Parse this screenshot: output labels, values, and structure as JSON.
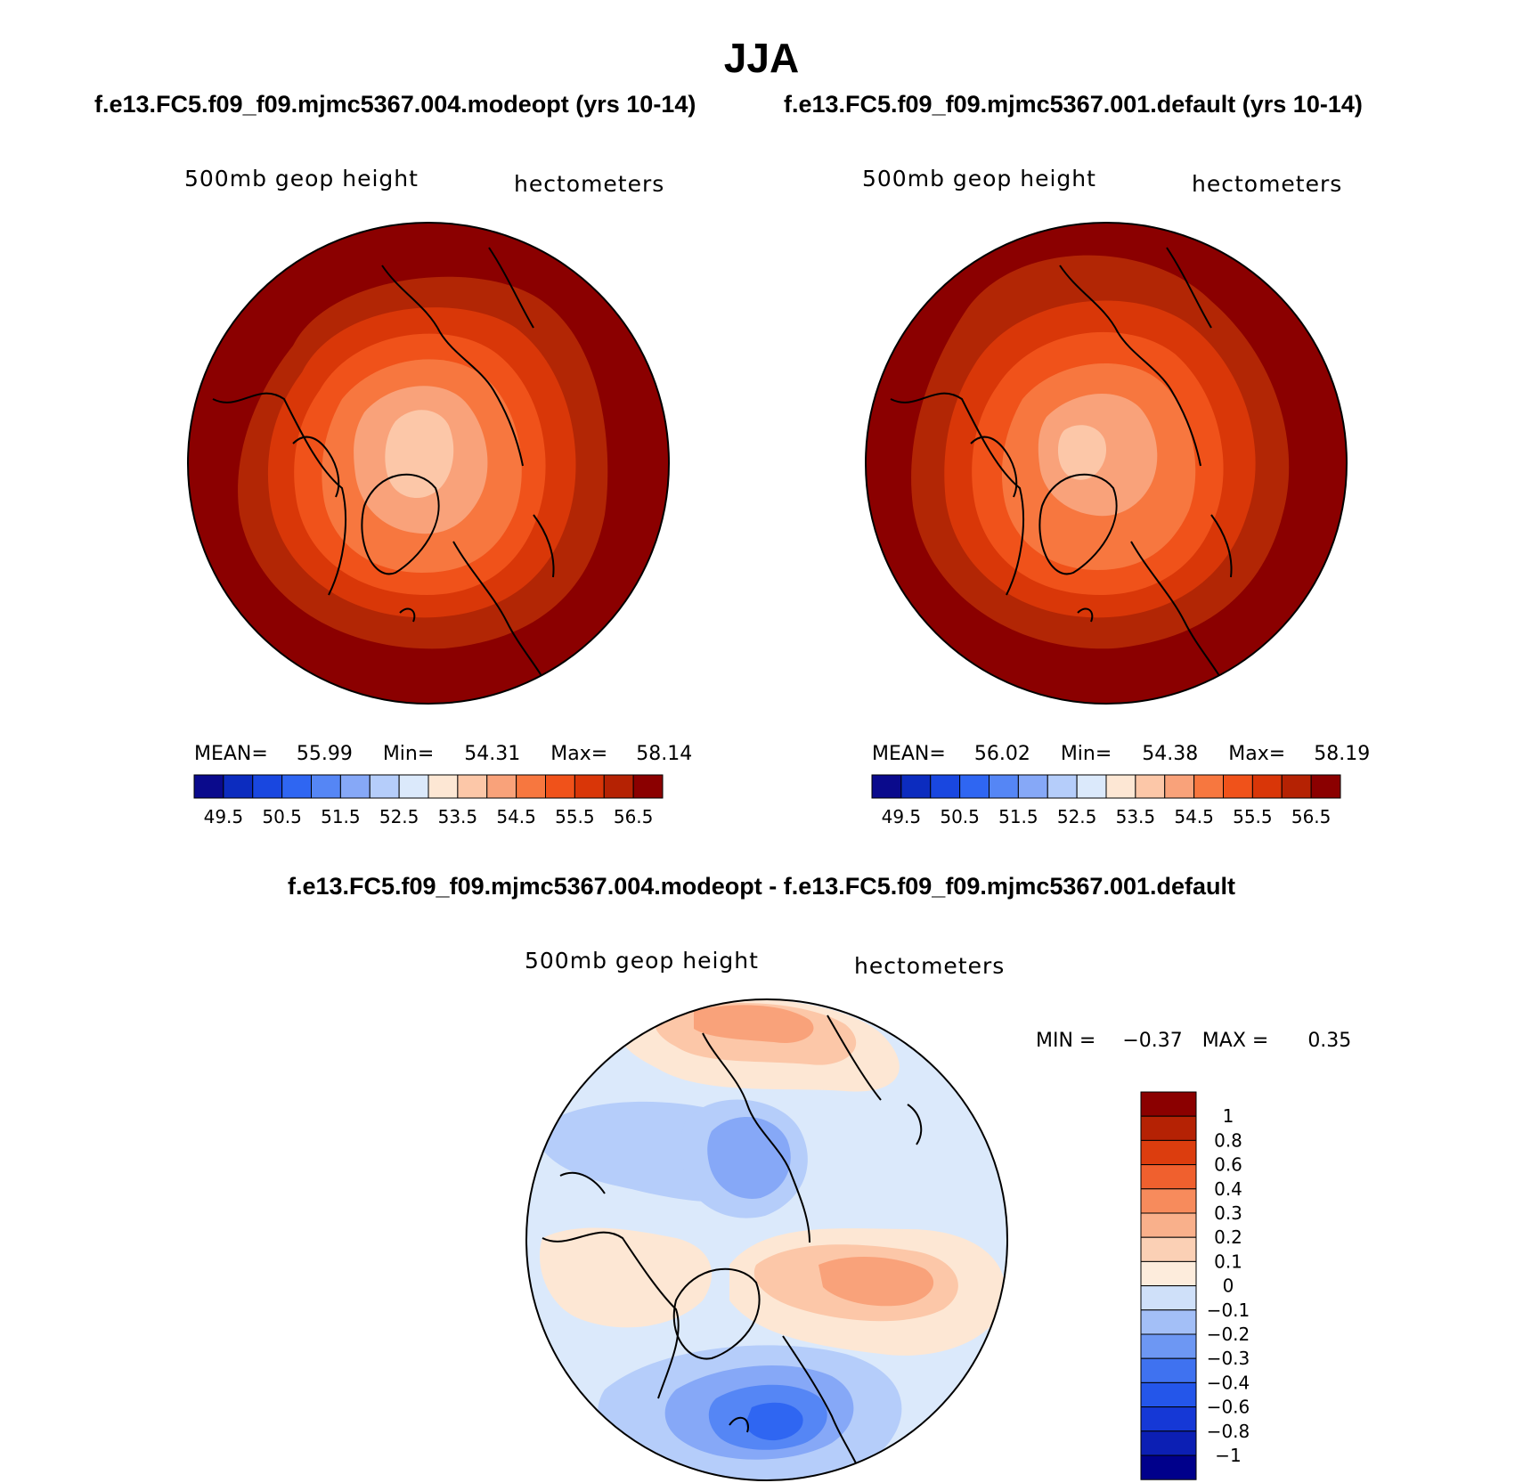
{
  "title": "JJA",
  "cases": {
    "left": "f.e13.FC5.f09_f09.mjmc5367.004.modeopt (yrs 10-14)",
    "right": "f.e13.FC5.f09_f09.mjmc5367.001.default (yrs 10-14)",
    "diff": "f.e13.FC5.f09_f09.mjmc5367.004.modeopt - f.e13.FC5.f09_f09.mjmc5367.001.default"
  },
  "panels": [
    {
      "variable": "500mb geop height",
      "units": "hectometers",
      "stats": {
        "mean_label": "MEAN=",
        "mean": "55.99",
        "min_label": "Min=",
        "min": "54.31",
        "max_label": "Max=",
        "max": "58.14"
      }
    },
    {
      "variable": "500mb geop height",
      "units": "hectometers",
      "stats": {
        "mean_label": "MEAN=",
        "mean": "56.02",
        "min_label": "Min=",
        "min": "54.38",
        "max_label": "Max=",
        "max": "58.19"
      }
    },
    {
      "variable": "500mb geop height",
      "units": "hectometers",
      "stats": {
        "min_label": "MIN =",
        "min": "−0.37",
        "max_label": "MAX =",
        "max": "0.35"
      }
    }
  ],
  "colorbar_main": {
    "colors": [
      "#0a0a8c",
      "#0c2cbf",
      "#1947e0",
      "#2f66f2",
      "#5586f5",
      "#86a8f7",
      "#b5cdfa",
      "#dbe9fb",
      "#fde7d4",
      "#fcc7a8",
      "#f9a27a",
      "#f7773f",
      "#f0521a",
      "#d93608",
      "#b52203",
      "#8b0000"
    ],
    "tick_labels": [
      "49.5",
      "50.5",
      "51.5",
      "52.5",
      "53.5",
      "54.5",
      "55.5",
      "56.5"
    ]
  },
  "colorbar_diff": {
    "colors": [
      "#00008b",
      "#0c1fb4",
      "#1538d6",
      "#2456ea",
      "#3f72f0",
      "#6d97f3",
      "#a3bff7",
      "#cfe0f9",
      "#fdecdc",
      "#fbd0b5",
      "#f9b08b",
      "#f78b5c",
      "#f0602e",
      "#dc3d0e",
      "#b52204",
      "#8b0000"
    ],
    "tick_labels": [
      "1",
      "0.8",
      "0.6",
      "0.4",
      "0.3",
      "0.2",
      "0.1",
      "0",
      "−0.1",
      "−0.2",
      "−0.3",
      "−0.4",
      "−0.6",
      "−0.8",
      "−1"
    ]
  },
  "map_fields": {
    "case": {
      "background": "#8b0000",
      "levels": [
        "#b22605",
        "#d93708",
        "#f0521a",
        "#f7773f",
        "#f9a27a",
        "#fcc7a8"
      ]
    },
    "diff": {
      "background": "#dbe9fb",
      "blue_levels": [
        "#b5cdfa",
        "#86a8f7",
        "#5586f5",
        "#2f66f2"
      ],
      "red_levels": [
        "#fde7d4",
        "#fcc7a8",
        "#f9a27a",
        "#f7773f"
      ]
    }
  }
}
